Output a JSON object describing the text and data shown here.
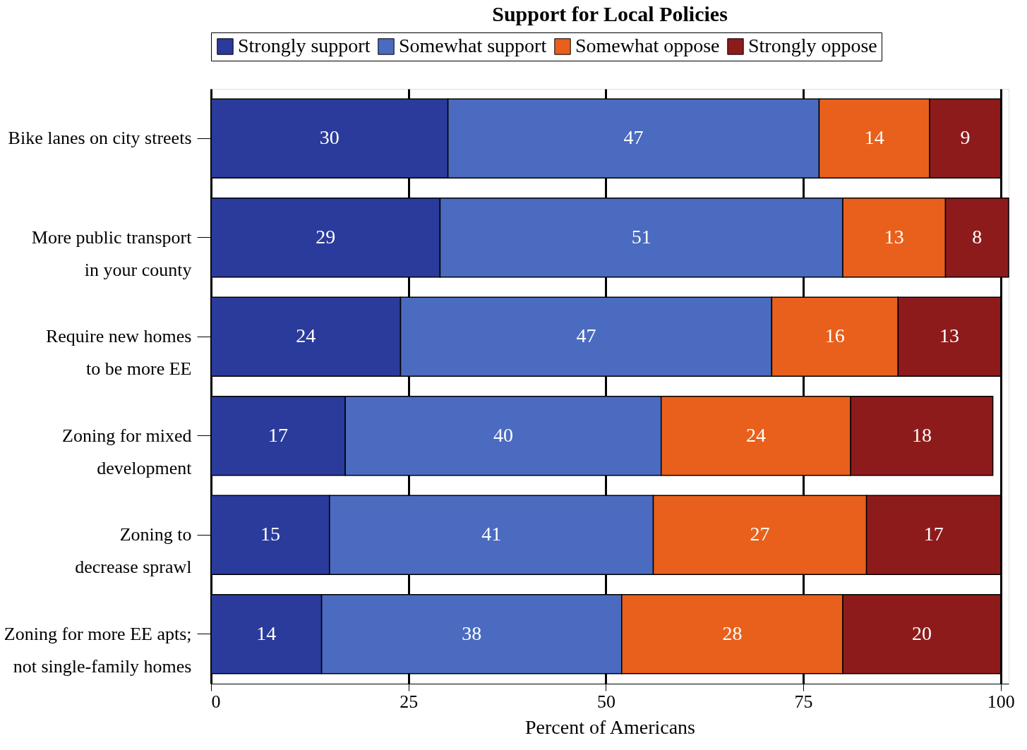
{
  "chart_data": {
    "type": "bar",
    "orientation": "horizontal",
    "stacked": true,
    "title": "Support for Local Policies",
    "xlabel": "Percent of Americans",
    "categories": [
      "Bike lanes on city streets",
      "More public transport\nin your county",
      "Require new homes\nto be more EE",
      "Zoning for mixed\ndevelopment",
      "Zoning to\ndecrease sprawl",
      "Zoning for more EE apts;\nnot single-family homes"
    ],
    "series": [
      {
        "name": "Strongly support",
        "color": "#2b3b9b",
        "values": [
          30,
          29,
          24,
          17,
          15,
          14
        ]
      },
      {
        "name": "Somewhat support",
        "color": "#4a6bbf",
        "values": [
          47,
          51,
          47,
          40,
          41,
          38
        ]
      },
      {
        "name": "Somewhat oppose",
        "color": "#e8601c",
        "values": [
          14,
          13,
          16,
          24,
          27,
          28
        ]
      },
      {
        "name": "Strongly oppose",
        "color": "#8e1b1b",
        "values": [
          9,
          8,
          13,
          18,
          17,
          20
        ]
      }
    ],
    "xlim": [
      0,
      101
    ],
    "xticks": [
      0,
      25,
      50,
      75,
      100
    ],
    "grid": "x",
    "legend": "top",
    "data_labels": true
  }
}
